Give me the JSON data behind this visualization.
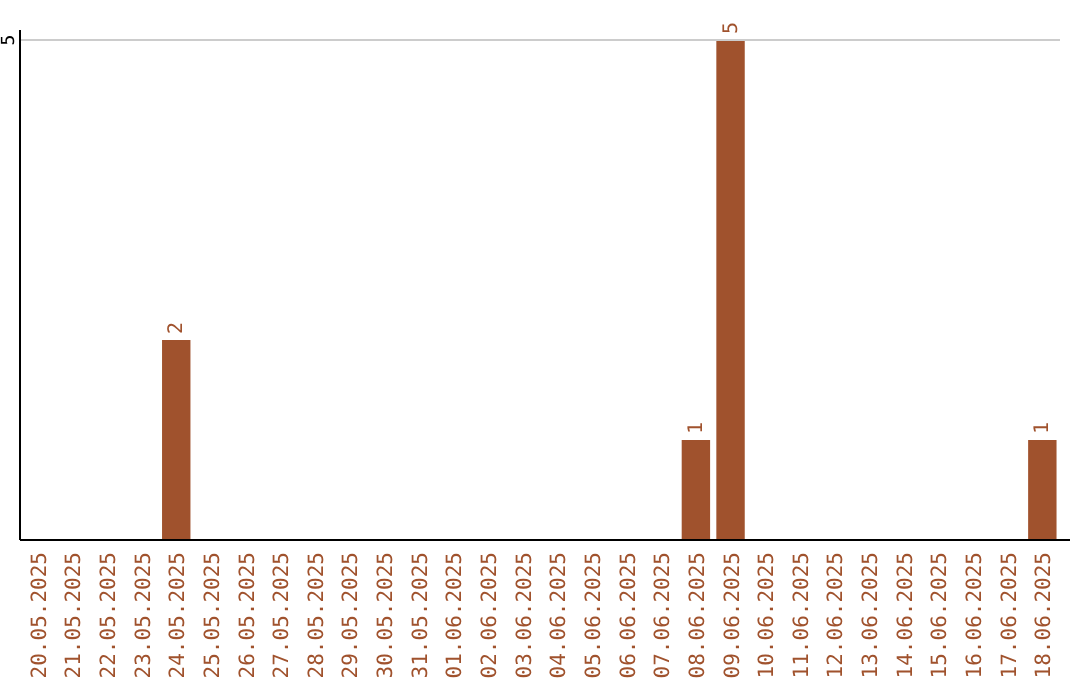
{
  "chart_data": {
    "type": "bar",
    "categories": [
      "20.05.2025",
      "21.05.2025",
      "22.05.2025",
      "23.05.2025",
      "24.05.2025",
      "25.05.2025",
      "26.05.2025",
      "27.05.2025",
      "28.05.2025",
      "29.05.2025",
      "30.05.2025",
      "31.05.2025",
      "01.06.2025",
      "02.06.2025",
      "03.06.2025",
      "04.06.2025",
      "05.06.2025",
      "06.06.2025",
      "07.06.2025",
      "08.06.2025",
      "09.06.2025",
      "10.06.2025",
      "11.06.2025",
      "12.06.2025",
      "13.06.2025",
      "14.06.2025",
      "15.06.2025",
      "16.06.2025",
      "17.06.2025",
      "18.06.2025"
    ],
    "values": [
      0,
      0,
      0,
      0,
      2,
      0,
      0,
      0,
      0,
      0,
      0,
      0,
      0,
      0,
      0,
      0,
      0,
      0,
      0,
      1,
      5,
      0,
      0,
      0,
      0,
      0,
      0,
      0,
      0,
      1
    ],
    "value_labels": [
      null,
      null,
      null,
      null,
      "2",
      null,
      null,
      null,
      null,
      null,
      null,
      null,
      null,
      null,
      null,
      null,
      null,
      null,
      null,
      "1",
      "5",
      null,
      null,
      null,
      null,
      null,
      null,
      null,
      null,
      "1"
    ],
    "color": "#a0522d",
    "ylim": [
      0,
      5
    ],
    "yticks": [
      5
    ],
    "ref_lines": [
      {
        "axis": "y",
        "value": 5,
        "color": "#cccccc"
      }
    ]
  }
}
